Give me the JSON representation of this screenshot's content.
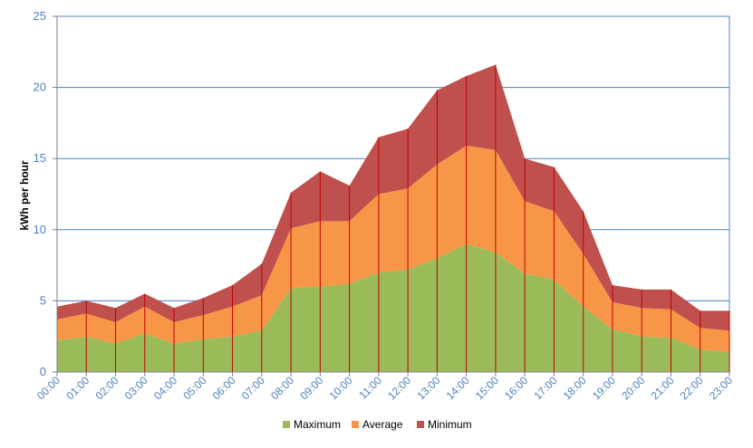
{
  "chart_data": {
    "type": "area",
    "stacked": true,
    "title": "",
    "xlabel": "",
    "ylabel": "kWh per hour",
    "ylim": [
      0,
      25
    ],
    "yticks": [
      0,
      5,
      10,
      15,
      20,
      25
    ],
    "grid": true,
    "legend_position": "bottom",
    "categories": [
      "00:00",
      "01:00",
      "02:00",
      "03:00",
      "04:00",
      "05:00",
      "06:00",
      "07:00",
      "08:00",
      "09:00",
      "10:00",
      "11:00",
      "12:00",
      "13:00",
      "14:00",
      "15:00",
      "16:00",
      "17:00",
      "18:00",
      "19:00",
      "20:00",
      "21:00",
      "22:00",
      "23:00"
    ],
    "series": [
      {
        "name": "Maximum",
        "color": "#9bbb59",
        "values": [
          2.2,
          2.5,
          2.0,
          2.7,
          2.0,
          2.3,
          2.5,
          2.9,
          5.9,
          6.0,
          6.2,
          7.0,
          7.2,
          8.0,
          9.0,
          8.4,
          6.9,
          6.5,
          4.6,
          3.0,
          2.5,
          2.4,
          1.6,
          1.4
        ]
      },
      {
        "name": "Average",
        "color": "#f79646",
        "values": [
          1.5,
          1.6,
          1.5,
          1.9,
          1.5,
          1.7,
          2.1,
          2.5,
          4.2,
          4.6,
          4.4,
          5.5,
          5.7,
          6.6,
          6.9,
          7.2,
          5.1,
          4.8,
          3.7,
          1.9,
          2.0,
          2.0,
          1.5,
          1.5
        ]
      },
      {
        "name": "Minimum",
        "color": "#c0504d",
        "values": [
          0.9,
          0.9,
          1.0,
          0.9,
          1.0,
          1.2,
          1.5,
          2.2,
          2.5,
          3.5,
          2.5,
          4.0,
          4.2,
          5.2,
          4.9,
          6.0,
          3.0,
          3.1,
          3.0,
          1.2,
          1.3,
          1.4,
          1.2,
          1.4
        ]
      }
    ],
    "colors": {
      "grid": "#4f81bd",
      "drop_lines": "#c00000",
      "tick_text": "#4f81bd"
    }
  }
}
